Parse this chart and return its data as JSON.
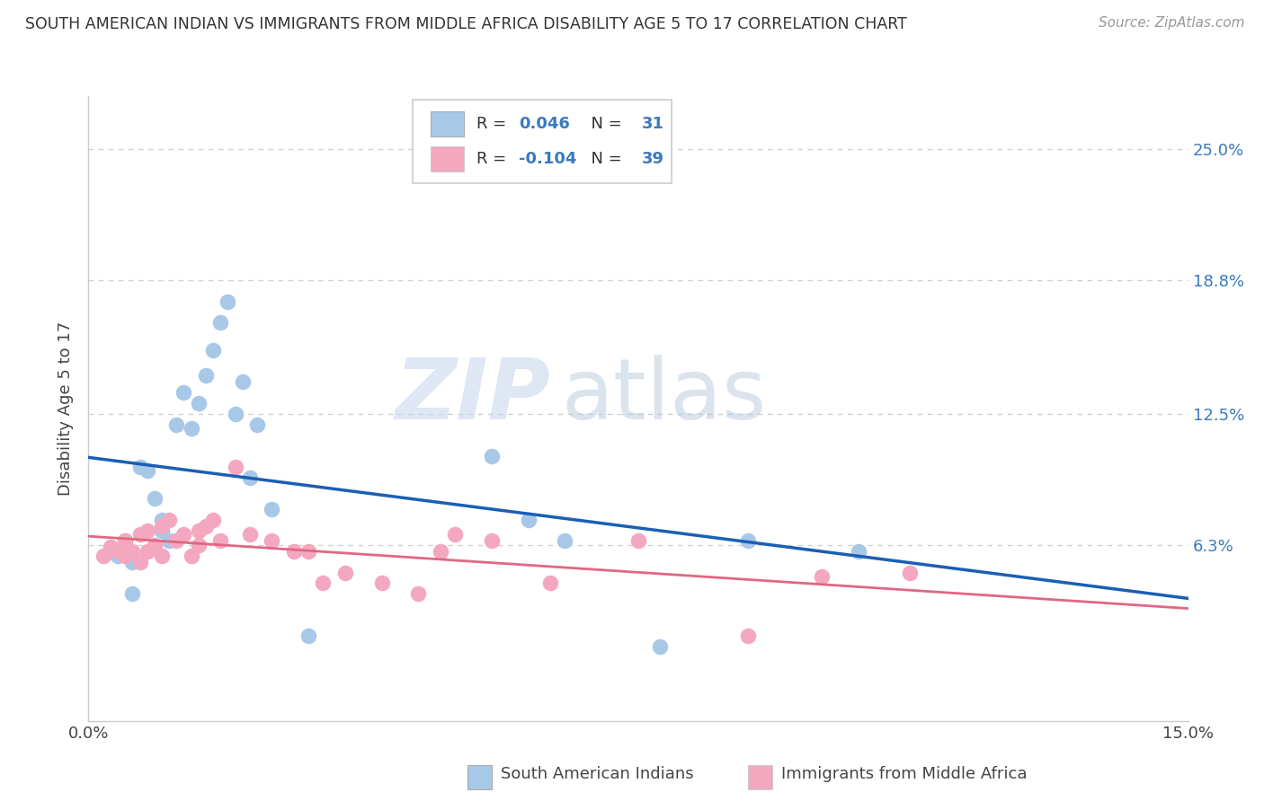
{
  "title": "SOUTH AMERICAN INDIAN VS IMMIGRANTS FROM MIDDLE AFRICA DISABILITY AGE 5 TO 17 CORRELATION CHART",
  "source": "Source: ZipAtlas.com",
  "ylabel": "Disability Age 5 to 17",
  "ytick_labels": [
    "6.3%",
    "12.5%",
    "18.8%",
    "25.0%"
  ],
  "ytick_values": [
    0.063,
    0.125,
    0.188,
    0.25
  ],
  "xlim": [
    0.0,
    0.15
  ],
  "ylim": [
    -0.02,
    0.275
  ],
  "blue_R": 0.046,
  "blue_N": 31,
  "pink_R": -0.104,
  "pink_N": 39,
  "legend_label_blue": "South American Indians",
  "legend_label_pink": "Immigrants from Middle Africa",
  "blue_color": "#a8c8e8",
  "pink_color": "#f4a8c0",
  "blue_line_color": "#1a5fb4",
  "pink_line_color": "#e06880",
  "blue_scatter_x": [
    0.003,
    0.004,
    0.005,
    0.006,
    0.006,
    0.007,
    0.008,
    0.009,
    0.01,
    0.01,
    0.011,
    0.012,
    0.013,
    0.014,
    0.015,
    0.016,
    0.017,
    0.018,
    0.019,
    0.02,
    0.021,
    0.022,
    0.023,
    0.025,
    0.03,
    0.055,
    0.06,
    0.065,
    0.078,
    0.09,
    0.105
  ],
  "blue_scatter_y": [
    0.06,
    0.058,
    0.065,
    0.055,
    0.04,
    0.1,
    0.098,
    0.085,
    0.075,
    0.07,
    0.065,
    0.12,
    0.135,
    0.118,
    0.13,
    0.143,
    0.155,
    0.168,
    0.178,
    0.125,
    0.14,
    0.095,
    0.12,
    0.08,
    0.02,
    0.105,
    0.075,
    0.065,
    0.015,
    0.065,
    0.06
  ],
  "pink_scatter_x": [
    0.002,
    0.003,
    0.004,
    0.005,
    0.005,
    0.006,
    0.007,
    0.007,
    0.008,
    0.008,
    0.009,
    0.01,
    0.01,
    0.011,
    0.012,
    0.013,
    0.014,
    0.015,
    0.015,
    0.016,
    0.017,
    0.018,
    0.02,
    0.022,
    0.025,
    0.028,
    0.03,
    0.032,
    0.035,
    0.04,
    0.045,
    0.048,
    0.05,
    0.055,
    0.063,
    0.075,
    0.09,
    0.1,
    0.112
  ],
  "pink_scatter_y": [
    0.058,
    0.062,
    0.06,
    0.065,
    0.058,
    0.06,
    0.055,
    0.068,
    0.07,
    0.06,
    0.063,
    0.058,
    0.072,
    0.075,
    0.065,
    0.068,
    0.058,
    0.063,
    0.07,
    0.072,
    0.075,
    0.065,
    0.1,
    0.068,
    0.065,
    0.06,
    0.06,
    0.045,
    0.05,
    0.045,
    0.04,
    0.06,
    0.068,
    0.065,
    0.045,
    0.065,
    0.02,
    0.048,
    0.05
  ],
  "watermark_zip": "ZIP",
  "watermark_atlas": "atlas",
  "background_color": "#ffffff",
  "grid_color": "#d0d0d0"
}
